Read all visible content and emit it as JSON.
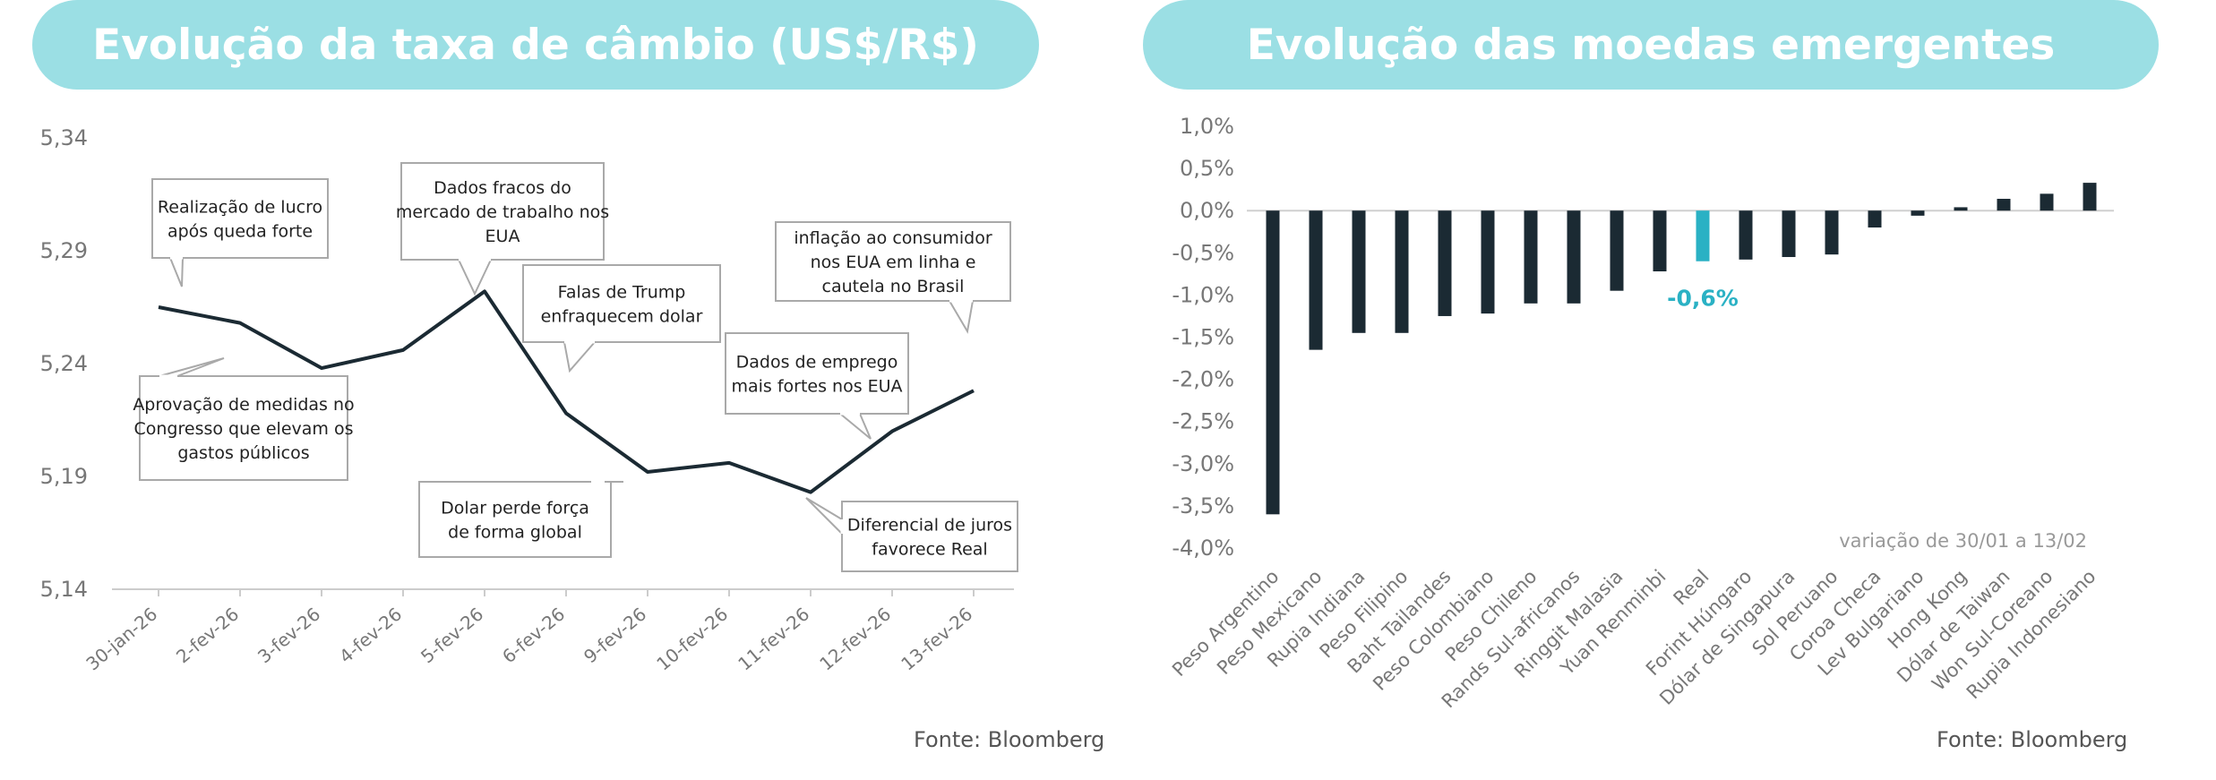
{
  "left_panel": {
    "title": "Evolução da taxa de câmbio (US$/R$)",
    "source": "Fonte: Bloomberg"
  },
  "right_panel": {
    "title": "Evolução das moedas emergentes",
    "source": "Fonte: Bloomberg"
  },
  "colors": {
    "banner": "#9bdfe4",
    "series": "#1b2a33",
    "highlight": "#2ab1c4",
    "text": "#555555"
  },
  "chart_data": [
    {
      "type": "line",
      "title": "Evolução da taxa de câmbio (US$/R$)",
      "categories": [
        "30-jan-26",
        "2-fev-26",
        "3-fev-26",
        "4-fev-26",
        "5-fev-26",
        "6-fev-26",
        "9-fev-26",
        "10-fev-26",
        "11-fev-26",
        "12-fev-26",
        "13-fev-26"
      ],
      "values": [
        5.265,
        5.258,
        5.238,
        5.246,
        5.272,
        5.218,
        5.192,
        5.196,
        5.183,
        5.21,
        5.228
      ],
      "ylim": [
        5.14,
        5.34
      ],
      "yticks": [
        "5,14",
        "5,19",
        "5,24",
        "5,29",
        "5,34"
      ],
      "grid": false,
      "annotations": [
        "Realização de lucro após queda forte",
        "Aprovação de medidas no Congresso que elevam os gastos públicos",
        "Dados fracos do mercado de trabalho nos EUA",
        "Dolar perde força de forma global",
        "Falas de Trump enfraquecem dolar",
        "Dados de emprego mais fortes nos EUA",
        "inflação ao consumidor nos EUA em linha e cautela no Brasil",
        "Diferencial de juros favorece Real"
      ]
    },
    {
      "type": "bar",
      "title": "Evolução das moedas emergentes",
      "categories": [
        "Peso Argentino",
        "Peso Mexicano",
        "Rupia Indiana",
        "Peso Filipino",
        "Baht Tailandes",
        "Peso Colombiano",
        "Peso Chileno",
        "Rands Sul-africanos",
        "Ringgit Malasia",
        "Yuan Renminbi",
        "Real",
        "Forint Húngaro",
        "Dólar de Singapura",
        "Sol Peruano",
        "Coroa Checa",
        "Lev Bulgariano",
        "Hong Kong",
        "Dólar de Taiwan",
        "Won Sul-Coreano",
        "Rupia Indonesiano"
      ],
      "values": [
        -3.6,
        -1.65,
        -1.45,
        -1.45,
        -1.25,
        -1.22,
        -1.1,
        -1.1,
        -0.95,
        -0.72,
        -0.6,
        -0.58,
        -0.55,
        -0.52,
        -0.2,
        -0.06,
        0.04,
        0.14,
        0.2,
        0.33
      ],
      "highlight": "Real",
      "highlight_label": "-0,6%",
      "ylim": [
        -4.0,
        1.0
      ],
      "yticks": [
        "1,0%",
        "0,5%",
        "0,0%",
        "-0,5%",
        "-1,0%",
        "-1,5%",
        "-2,0%",
        "-2,5%",
        "-3,0%",
        "-3,5%",
        "-4,0%"
      ],
      "note": "variação de 30/01 a 13/02",
      "grid": false
    }
  ]
}
